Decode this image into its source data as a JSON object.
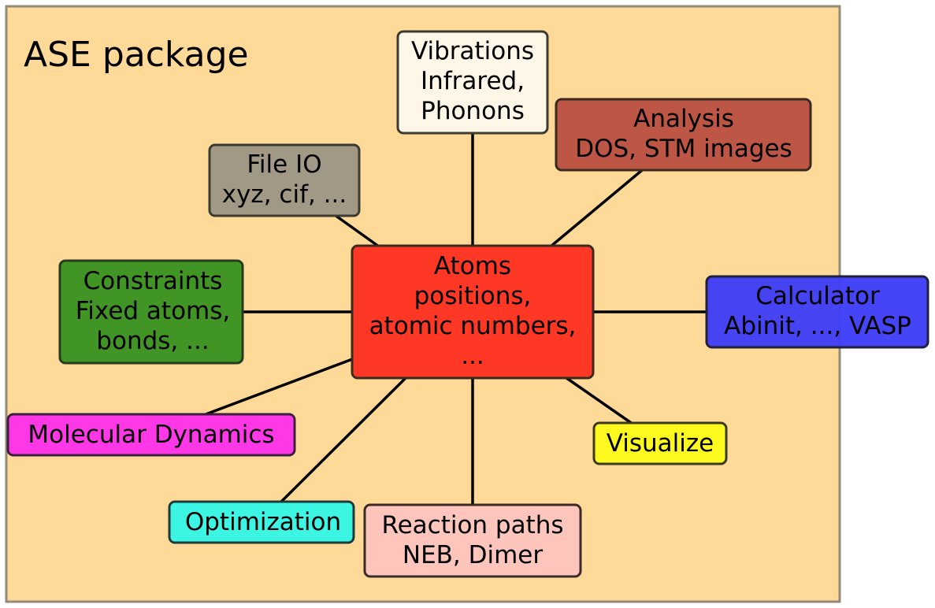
{
  "title": "ASE package",
  "colors": {
    "package_fill": "#FED998",
    "package_stroke": "#938A79",
    "connector": "#000000"
  },
  "center": {
    "lines": [
      "Atoms",
      "positions,",
      "atomic numbers,",
      "..."
    ],
    "fill": "#FF3725"
  },
  "nodes": [
    {
      "id": "vibrations",
      "lines": [
        "Vibrations",
        "Infrared,",
        "Phonons"
      ],
      "fill": "#FEF6E6"
    },
    {
      "id": "analysis",
      "lines": [
        "Analysis",
        "DOS, STM images"
      ],
      "fill": "#BD5645"
    },
    {
      "id": "file-io",
      "lines": [
        "File IO",
        "xyz, cif, ..."
      ],
      "fill": "#A19886"
    },
    {
      "id": "constraints",
      "lines": [
        "Constraints",
        "Fixed atoms,",
        "bonds, ..."
      ],
      "fill": "#419525"
    },
    {
      "id": "calculator",
      "lines": [
        "Calculator",
        "Abinit, ..., VASP"
      ],
      "fill": "#3D3CF6"
    },
    {
      "id": "molecular-dynamics",
      "lines": [
        "Molecular Dynamics"
      ],
      "fill": "#FE38E7"
    },
    {
      "id": "visualize",
      "lines": [
        "Visualize"
      ],
      "fill": "#FEFA20"
    },
    {
      "id": "optimization",
      "lines": [
        "Optimization"
      ],
      "fill": "#3DF5E3"
    },
    {
      "id": "reaction-paths",
      "lines": [
        "Reaction paths",
        "NEB, Dimer"
      ],
      "fill": "#FEC5BC"
    }
  ]
}
